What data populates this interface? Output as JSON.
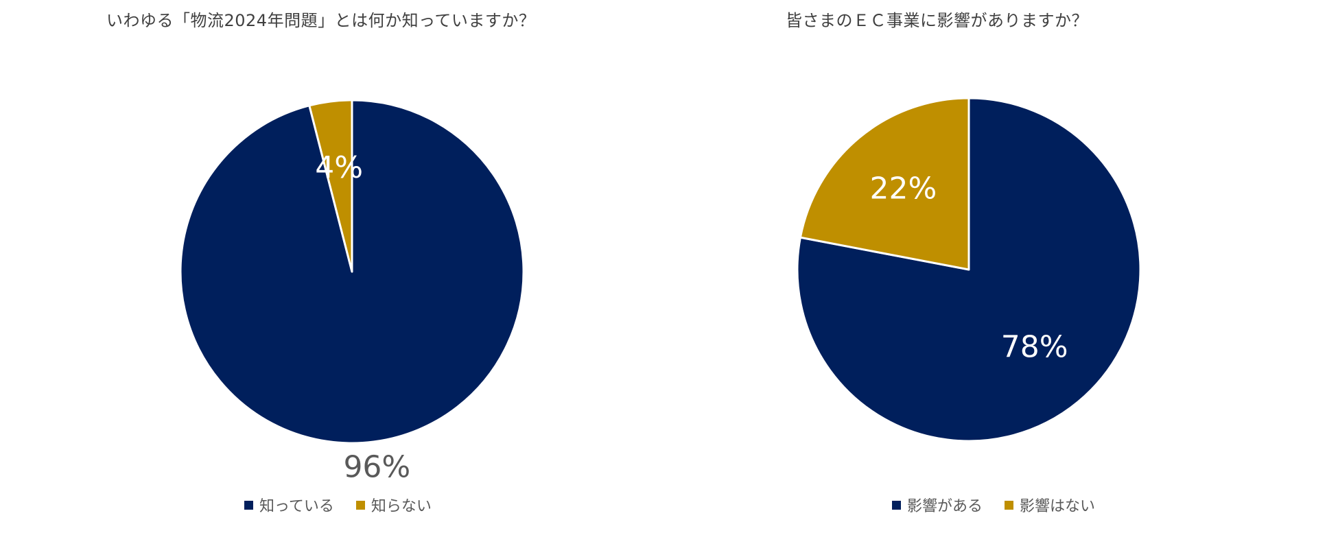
{
  "colors": {
    "primary": "#001F5C",
    "secondary": "#BF8F00",
    "outside_label": "#595959",
    "inside_label": "#ffffff"
  },
  "chart_data": [
    {
      "type": "pie",
      "title": "いわゆる「物流2024年問題」とは何か知っていますか？",
      "slices": [
        {
          "label": "知っている",
          "value": 96,
          "value_label": "96%"
        },
        {
          "label": "知らない",
          "value": 4,
          "value_label": "4%"
        }
      ],
      "legend_position": "bottom"
    },
    {
      "type": "pie",
      "title": "皆さまのＥＣ事業に影響がありますか？",
      "slices": [
        {
          "label": "影響がある",
          "value": 78,
          "value_label": "78%"
        },
        {
          "label": "影響はない",
          "value": 22,
          "value_label": "22%"
        }
      ],
      "legend_position": "bottom"
    }
  ]
}
